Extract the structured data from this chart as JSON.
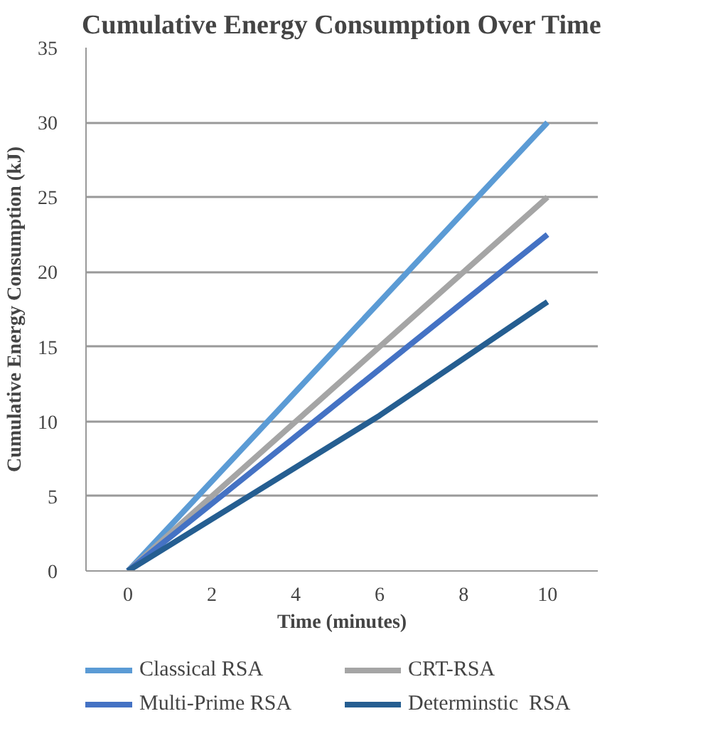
{
  "chart_data": {
    "type": "line",
    "title": "Cumulative Energy Consumption Over Time",
    "xlabel": "Time (minutes)",
    "ylabel": "Cumulative Energy Consumption (kJ)",
    "xlim": [
      -1,
      11.2
    ],
    "xticks": [
      0,
      2,
      4,
      6,
      8,
      10
    ],
    "ylim": [
      0,
      35
    ],
    "yticks": [
      0,
      5,
      10,
      15,
      20,
      25,
      30,
      35
    ],
    "grid": "y",
    "legend": "bottom",
    "marker": "none",
    "line_style": "solid",
    "series": [
      {
        "name": "Classical RSA",
        "color": "#5b9bd5",
        "x": [
          0,
          10
        ],
        "values": [
          0,
          30
        ]
      },
      {
        "name": "CRT-RSA",
        "color": "#a5a5a5",
        "x": [
          0,
          10
        ],
        "values": [
          0,
          25
        ]
      },
      {
        "name": "Multi-Prime RSA",
        "color": "#4472c4",
        "x": [
          0,
          10
        ],
        "values": [
          0,
          22.5
        ]
      },
      {
        "name": "Determinstic  RSA",
        "color": "#255e91",
        "x": [
          0,
          6,
          10
        ],
        "values": [
          0,
          10.4,
          18
        ]
      }
    ]
  }
}
